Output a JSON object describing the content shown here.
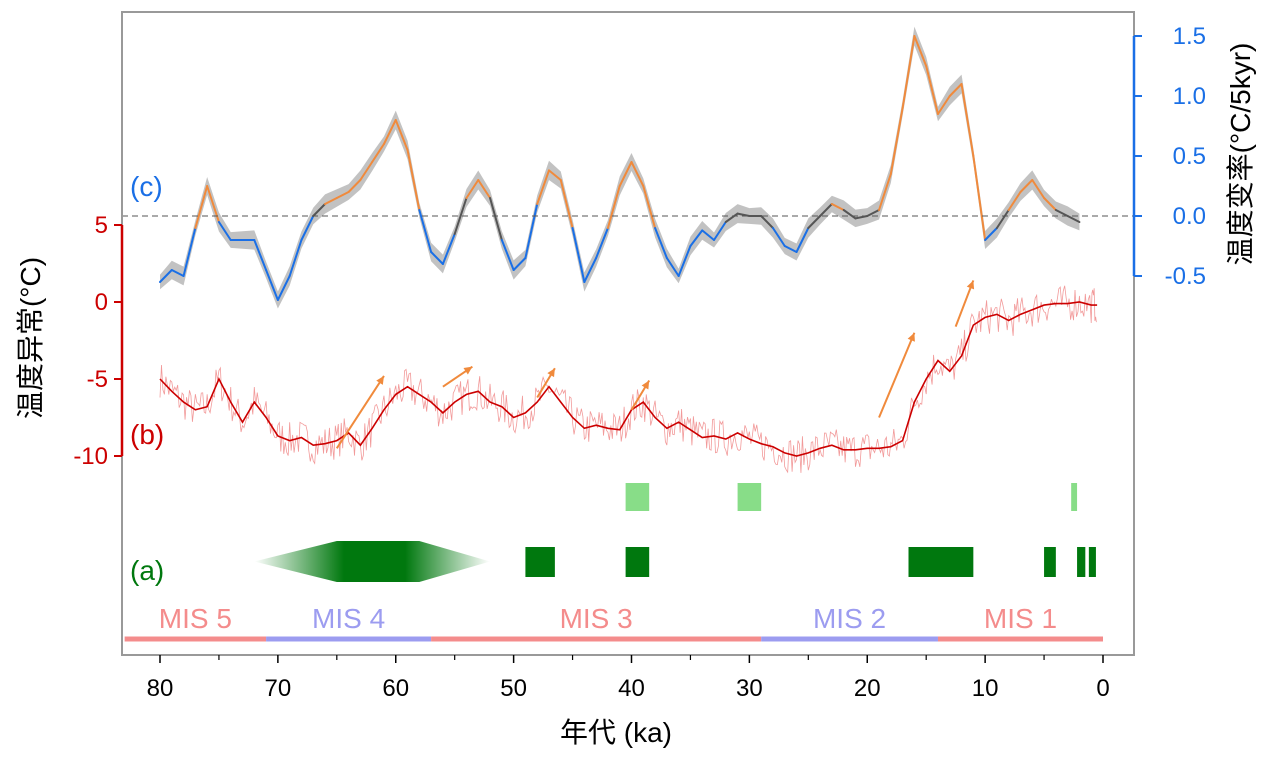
{
  "chart_data": {
    "type": "line",
    "xlabel": "年代 (ka)",
    "x_ticks": [
      "80",
      "70",
      "60",
      "50",
      "40",
      "30",
      "20",
      "10",
      "0"
    ],
    "xlim": [
      80,
      0
    ],
    "left_axis": {
      "label": "温度异常(°C)",
      "ticks": [
        "5",
        "0",
        "-5",
        "-10"
      ],
      "color": "#cc0000"
    },
    "right_axis": {
      "label": "温度变率(°C/5kyr)",
      "ticks": [
        "1.5",
        "1.0",
        "0.5",
        "0.0",
        "-0.5"
      ],
      "color": "#1a6fe6"
    },
    "panel_labels": {
      "a": "(a)",
      "b": "(b)",
      "c": "(c)"
    },
    "series": [
      {
        "name": "(c)",
        "axis": "right",
        "x": [
          80,
          79,
          78,
          77,
          76,
          75,
          74,
          73,
          72,
          71,
          70,
          69,
          68,
          67,
          66,
          65,
          64,
          63,
          62,
          61,
          60,
          59,
          58,
          57,
          56,
          55,
          54,
          53,
          52,
          51,
          50,
          49,
          48,
          47,
          46,
          45,
          44,
          43,
          42,
          41,
          40,
          39,
          38,
          37,
          36,
          35,
          34,
          33,
          32,
          31,
          30,
          29,
          28,
          27,
          26,
          25,
          24,
          23,
          22,
          21,
          20,
          19,
          18,
          17,
          16,
          15,
          14,
          13,
          12,
          11,
          10,
          9,
          8,
          7,
          6,
          5,
          4,
          3,
          2
        ],
        "y": [
          -0.55,
          -0.45,
          -0.5,
          -0.1,
          0.25,
          -0.05,
          -0.2,
          -0.2,
          -0.2,
          -0.45,
          -0.7,
          -0.5,
          -0.2,
          0.0,
          0.1,
          0.15,
          0.2,
          0.3,
          0.45,
          0.6,
          0.8,
          0.55,
          0.05,
          -0.3,
          -0.4,
          -0.15,
          0.15,
          0.3,
          0.15,
          -0.2,
          -0.45,
          -0.35,
          0.1,
          0.38,
          0.3,
          -0.1,
          -0.55,
          -0.35,
          -0.1,
          0.25,
          0.45,
          0.25,
          -0.1,
          -0.35,
          -0.5,
          -0.25,
          -0.12,
          -0.2,
          -0.05,
          0.02,
          0.0,
          0.0,
          -0.1,
          -0.25,
          -0.3,
          -0.1,
          0.0,
          0.1,
          0.05,
          -0.02,
          0.0,
          0.05,
          0.35,
          0.9,
          1.5,
          1.25,
          0.85,
          1.0,
          1.1,
          0.5,
          -0.2,
          -0.1,
          0.05,
          0.2,
          0.3,
          0.15,
          0.05,
          0.0,
          -0.05
        ],
        "segment_colors": {
          "positive": "#f08a3c",
          "negative": "#1a6fe6",
          "near_zero": "#555555",
          "uncertainty_band": "#bbbbbb"
        }
      },
      {
        "name": "(b)",
        "axis": "left",
        "x": [
          80,
          79,
          78,
          77,
          76,
          75,
          74,
          73,
          72,
          71,
          70,
          69,
          68,
          67,
          66,
          65,
          64,
          63,
          62,
          61,
          60,
          59,
          58,
          57,
          56,
          55,
          54,
          53,
          52,
          51,
          50,
          49,
          48,
          47,
          46,
          45,
          44,
          43,
          42,
          41,
          40,
          39,
          38,
          37,
          36,
          35,
          34,
          33,
          32,
          31,
          30,
          29,
          28,
          27,
          26,
          25,
          24,
          23,
          22,
          21,
          20,
          19,
          18,
          17,
          16,
          15,
          14,
          13,
          12,
          11,
          10,
          9,
          8,
          7,
          6,
          5,
          4,
          3,
          2,
          1,
          0.5
        ],
        "y": [
          -5.0,
          -5.8,
          -6.5,
          -7.0,
          -6.8,
          -5.0,
          -6.5,
          -7.8,
          -6.5,
          -7.5,
          -8.7,
          -9.0,
          -8.8,
          -9.3,
          -9.2,
          -9.0,
          -8.5,
          -9.3,
          -8.2,
          -7.0,
          -6.0,
          -5.5,
          -6.0,
          -6.5,
          -7.2,
          -6.5,
          -6.0,
          -5.8,
          -6.5,
          -6.8,
          -7.5,
          -7.2,
          -6.5,
          -5.5,
          -6.5,
          -7.5,
          -8.2,
          -8.0,
          -8.2,
          -8.3,
          -7.0,
          -6.5,
          -7.5,
          -8.2,
          -7.8,
          -8.3,
          -8.8,
          -8.7,
          -8.9,
          -8.5,
          -8.9,
          -9.2,
          -9.4,
          -9.8,
          -10.0,
          -9.8,
          -9.5,
          -9.3,
          -9.6,
          -9.6,
          -9.5,
          -9.5,
          -9.4,
          -9.0,
          -6.5,
          -5.0,
          -3.8,
          -4.5,
          -3.5,
          -1.5,
          -1.0,
          -0.8,
          -1.2,
          -0.8,
          -0.5,
          -0.2,
          -0.1,
          -0.1,
          0.0,
          -0.2,
          -0.2
        ],
        "line_color": "#cc0000",
        "noise_color": "#f08888"
      }
    ],
    "events_a": {
      "label": "(a)",
      "color": "#00780e",
      "light_color": "#88dd88",
      "gradient_range": [
        72,
        52
      ],
      "gradient_core": [
        65,
        58
      ],
      "bars": [
        [
          49,
          46.5
        ],
        [
          40.5,
          38.5
        ],
        [
          16.5,
          11
        ],
        [
          5,
          4
        ],
        [
          2.2,
          1.5
        ],
        [
          1.2,
          0.6
        ]
      ],
      "light_bars": [
        [
          40.5,
          38.5
        ],
        [
          31,
          29
        ],
        [
          2.7,
          2.2
        ]
      ]
    },
    "mis_stages": [
      {
        "label": "MIS 5",
        "from": 83,
        "to": 71,
        "color": "#f48c8c"
      },
      {
        "label": "MIS 4",
        "from": 71,
        "to": 57,
        "color": "#9c9cf0"
      },
      {
        "label": "MIS 3",
        "from": 57,
        "to": 29,
        "color": "#f48c8c"
      },
      {
        "label": "MIS 2",
        "from": 29,
        "to": 14,
        "color": "#9c9cf0"
      },
      {
        "label": "MIS 1",
        "from": 14,
        "to": 0,
        "color": "#f48c8c"
      }
    ],
    "arrows": [
      [
        65,
        -9.5,
        61,
        -4.8
      ],
      [
        56,
        -5.5,
        53.5,
        -4.2
      ],
      [
        48,
        -6.2,
        46.5,
        -4.3
      ],
      [
        40,
        -7.0,
        38.5,
        -5.1
      ],
      [
        19,
        -7.5,
        16,
        -2.0
      ],
      [
        12.5,
        -1.6,
        11,
        1.4
      ]
    ],
    "arrow_color": "#f08a3c",
    "zero_line": {
      "axis": "right",
      "value": 0.0,
      "style": "dashed"
    }
  }
}
